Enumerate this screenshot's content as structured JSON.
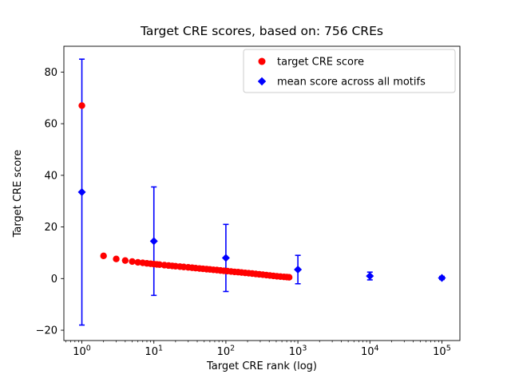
{
  "figure": {
    "title": "Target CRE scores, based on: 756 CREs"
  },
  "chart_data": {
    "type": "scatter",
    "title": "Target CRE scores, based on: 756 CREs",
    "xlabel": "Target CRE rank (log)",
    "ylabel": "Target CRE score",
    "x_scale": "log10",
    "xlim_log10": [
      -0.25,
      5.25
    ],
    "ylim": [
      -24,
      90
    ],
    "grid": false,
    "x_major_ticks": [
      {
        "value": 1,
        "label_base": "10",
        "label_exp": "0"
      },
      {
        "value": 10,
        "label_base": "10",
        "label_exp": "1"
      },
      {
        "value": 100,
        "label_base": "10",
        "label_exp": "2"
      },
      {
        "value": 1000,
        "label_base": "10",
        "label_exp": "3"
      },
      {
        "value": 10000,
        "label_base": "10",
        "label_exp": "4"
      },
      {
        "value": 100000,
        "label_base": "10",
        "label_exp": "5"
      }
    ],
    "y_ticks": [
      {
        "value": -20,
        "label": "−20"
      },
      {
        "value": 0,
        "label": "0"
      },
      {
        "value": 20,
        "label": "20"
      },
      {
        "value": 40,
        "label": "40"
      },
      {
        "value": 60,
        "label": "60"
      },
      {
        "value": 80,
        "label": "80"
      }
    ],
    "series": [
      {
        "name": "target CRE score",
        "plot_type": "scatter",
        "marker": "circle",
        "color": "#ff0000",
        "marker_size": 4.2,
        "points": [
          [
            1,
            67.0
          ],
          [
            2,
            8.8
          ],
          [
            3,
            7.6
          ],
          [
            4,
            7.0
          ],
          [
            5,
            6.6
          ],
          [
            6,
            6.3
          ],
          [
            7,
            6.1
          ],
          [
            8,
            5.9
          ],
          [
            9,
            5.75
          ],
          [
            10,
            5.6
          ],
          [
            11,
            5.5
          ],
          [
            12,
            5.4
          ],
          [
            14,
            5.2
          ],
          [
            16,
            5.05
          ],
          [
            18,
            4.9
          ],
          [
            20,
            4.8
          ],
          [
            23,
            4.65
          ],
          [
            26,
            4.5
          ],
          [
            30,
            4.35
          ],
          [
            34,
            4.2
          ],
          [
            38,
            4.05
          ],
          [
            43,
            3.9
          ],
          [
            48,
            3.8
          ],
          [
            54,
            3.65
          ],
          [
            60,
            3.55
          ],
          [
            67,
            3.4
          ],
          [
            75,
            3.3
          ],
          [
            84,
            3.15
          ],
          [
            94,
            3.0
          ],
          [
            105,
            2.9
          ],
          [
            118,
            2.75
          ],
          [
            132,
            2.6
          ],
          [
            148,
            2.5
          ],
          [
            165,
            2.35
          ],
          [
            185,
            2.2
          ],
          [
            207,
            2.1
          ],
          [
            232,
            1.95
          ],
          [
            260,
            1.8
          ],
          [
            291,
            1.65
          ],
          [
            326,
            1.5
          ],
          [
            365,
            1.35
          ],
          [
            408,
            1.2
          ],
          [
            457,
            1.05
          ],
          [
            511,
            0.9
          ],
          [
            572,
            0.78
          ],
          [
            640,
            0.66
          ],
          [
            700,
            0.58
          ],
          [
            756,
            0.5
          ]
        ]
      },
      {
        "name": "mean score across all motifs",
        "plot_type": "errorbar",
        "marker": "diamond",
        "color": "#0000ff",
        "marker_size": 5,
        "x": [
          1,
          10,
          100,
          1000,
          10000,
          100000
        ],
        "y": [
          33.5,
          14.5,
          8.0,
          3.5,
          1.0,
          0.25
        ],
        "yerr": [
          51.5,
          21.0,
          13.0,
          5.5,
          1.5,
          0.6
        ]
      }
    ],
    "legend": {
      "loc": "upper right",
      "entries": [
        {
          "label": "target CRE score",
          "marker": "circle",
          "color": "#ff0000"
        },
        {
          "label": "mean score across all motifs",
          "marker": "diamond",
          "color": "#0000ff"
        }
      ]
    }
  }
}
